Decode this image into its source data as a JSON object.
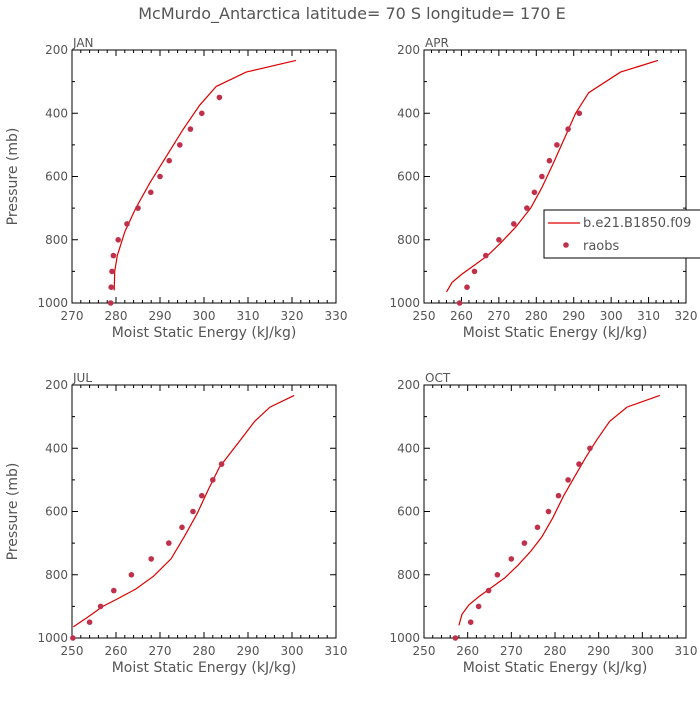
{
  "figure": {
    "title": "McMurdo_Antarctica  latitude= 70 S longitude= 170 E",
    "legend": {
      "model_label": "b.e21.B1850.f09",
      "obs_label": "raobs",
      "model_color": "#dd0000",
      "obs_color": "#c0304a"
    }
  },
  "chart_data": [
    {
      "type": "line",
      "panel": "JAN",
      "title": "JAN",
      "xlabel": "Moist Static Energy (kJ/kg)",
      "ylabel": "Pressure (mb)",
      "xlim": [
        270,
        330
      ],
      "ylim": [
        1000,
        200
      ],
      "xticks": [
        270,
        280,
        290,
        300,
        310,
        320,
        330
      ],
      "yticks": [
        200,
        400,
        600,
        800,
        1000
      ],
      "model": {
        "name": "b.e21.B1850.f09",
        "x": [
          279.6,
          279.7,
          280.3,
          282.0,
          284.5,
          287.7,
          291.5,
          295.3,
          299.0,
          302.8,
          309.6,
          320.9
        ],
        "p": [
          960,
          900,
          850,
          775,
          700,
          620,
          535,
          450,
          375,
          315,
          270,
          233
        ]
      },
      "raobs": {
        "name": "raobs",
        "x": [
          278.8,
          278.9,
          279.1,
          279.4,
          280.5,
          282.5,
          285.0,
          287.9,
          290.0,
          292.1,
          294.5,
          296.9,
          299.5,
          303.5
        ],
        "p": [
          1000,
          950,
          900,
          850,
          800,
          750,
          700,
          650,
          600,
          550,
          500,
          450,
          400,
          350
        ]
      }
    },
    {
      "type": "line",
      "panel": "APR",
      "title": "APR",
      "xlabel": "Moist Static Energy (kJ/kg)",
      "ylabel": "",
      "xlim": [
        250,
        320
      ],
      "ylim": [
        1000,
        200
      ],
      "xticks": [
        250,
        260,
        270,
        280,
        290,
        300,
        310,
        320
      ],
      "yticks": [
        200,
        400,
        600,
        800,
        1000
      ],
      "model": {
        "name": "b.e21.B1850.f09",
        "x": [
          256.0,
          257.5,
          260.0,
          263.5,
          267.0,
          270.5,
          274.5,
          278.5,
          281.5,
          284.5,
          287.5,
          290.5,
          294.0,
          302.5,
          312.5
        ],
        "p": [
          965,
          935,
          910,
          880,
          850,
          810,
          760,
          700,
          635,
          560,
          480,
          400,
          335,
          270,
          233
        ]
      },
      "raobs": {
        "name": "raobs",
        "x": [
          259.5,
          261.5,
          263.5,
          266.5,
          270.0,
          274.0,
          277.5,
          279.5,
          281.5,
          283.5,
          285.5,
          288.5,
          291.5
        ],
        "p": [
          1000,
          950,
          900,
          850,
          800,
          750,
          700,
          650,
          600,
          550,
          500,
          450,
          400
        ]
      }
    },
    {
      "type": "line",
      "panel": "JUL",
      "title": "JUL",
      "xlabel": "Moist Static Energy (kJ/kg)",
      "ylabel": "Pressure (mb)",
      "xlim": [
        250,
        310
      ],
      "ylim": [
        1000,
        200
      ],
      "xticks": [
        250,
        260,
        270,
        280,
        290,
        300,
        310
      ],
      "yticks": [
        200,
        400,
        600,
        800,
        1000
      ],
      "model": {
        "name": "b.e21.B1850.f09",
        "x": [
          250.3,
          253.5,
          257.0,
          260.5,
          264.5,
          268.5,
          272.5,
          275.5,
          278.5,
          281.0,
          283.5,
          286.0,
          288.5,
          291.5,
          295.0,
          300.5
        ],
        "p": [
          965,
          935,
          900,
          875,
          845,
          805,
          750,
          680,
          605,
          530,
          460,
          415,
          370,
          315,
          270,
          233
        ]
      },
      "raobs": {
        "name": "raobs",
        "x": [
          250.2,
          254.0,
          256.5,
          259.5,
          263.5,
          268.0,
          272.0,
          275.0,
          277.5,
          279.5,
          282.0,
          284.0
        ],
        "p": [
          1000,
          950,
          900,
          850,
          800,
          750,
          700,
          650,
          600,
          550,
          500,
          450
        ]
      }
    },
    {
      "type": "line",
      "panel": "OCT",
      "title": "OCT",
      "xlabel": "Moist Static Energy (kJ/kg)",
      "ylabel": "",
      "xlim": [
        250,
        310
      ],
      "ylim": [
        1000,
        200
      ],
      "xticks": [
        250,
        260,
        270,
        280,
        290,
        300,
        310
      ],
      "yticks": [
        200,
        400,
        600,
        800,
        1000
      ],
      "model": {
        "name": "b.e21.B1850.f09",
        "x": [
          258.0,
          258.7,
          260.3,
          262.5,
          265.5,
          268.5,
          271.5,
          274.5,
          277.0,
          279.5,
          282.0,
          284.5,
          287.0,
          289.5,
          292.5,
          296.5,
          304.0
        ],
        "p": [
          960,
          925,
          895,
          870,
          840,
          810,
          770,
          725,
          680,
          620,
          550,
          490,
          430,
          375,
          315,
          270,
          233
        ]
      },
      "raobs": {
        "name": "raobs",
        "x": [
          257.2,
          260.7,
          262.5,
          264.8,
          266.8,
          270.0,
          273.0,
          276.0,
          278.5,
          280.8,
          283.0,
          285.5,
          288.0
        ],
        "p": [
          1000,
          950,
          900,
          850,
          800,
          750,
          700,
          650,
          600,
          550,
          500,
          450,
          400
        ]
      }
    }
  ]
}
